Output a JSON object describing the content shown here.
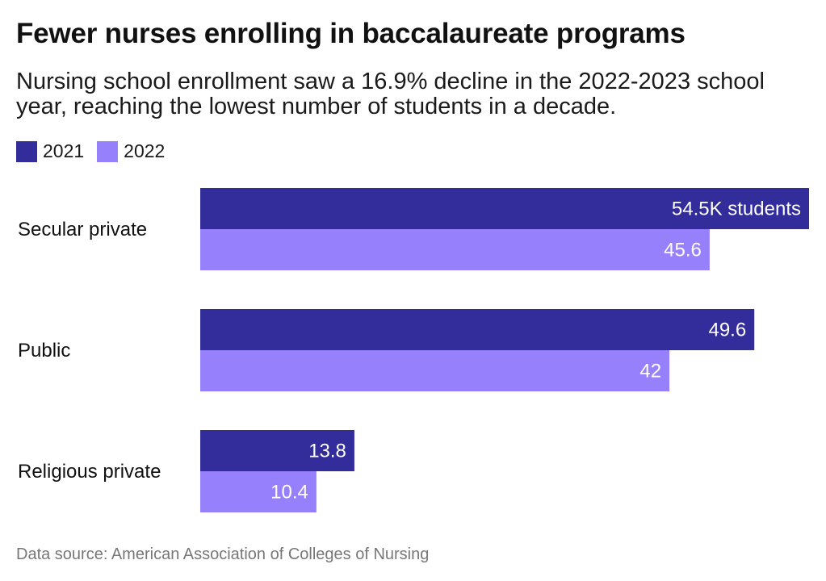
{
  "title": "Fewer nurses enrolling in baccalaureate programs",
  "subtitle": "Nursing school enrollment saw a 16.9% decline in the 2022-2023 school year, reaching the lowest number of students in a decade.",
  "source": "Data source: American Association of Colleges of Nursing",
  "colors": {
    "series_2021": "#332d9c",
    "series_2022": "#9780fb"
  },
  "chart_data": {
    "type": "bar",
    "orientation": "horizontal",
    "title": "Fewer nurses enrolling in baccalaureate programs",
    "xlabel": "",
    "ylabel": "",
    "units": "thousand students",
    "xlim": [
      0,
      54.5
    ],
    "grid": false,
    "legend_position": "top-left",
    "categories": [
      "Secular private",
      "Public",
      "Religious private"
    ],
    "series": [
      {
        "name": "2021",
        "color": "#332d9c",
        "values": [
          54.5,
          49.6,
          13.8
        ],
        "labels": [
          "54.5K students",
          "49.6",
          "13.8"
        ]
      },
      {
        "name": "2022",
        "color": "#9780fb",
        "values": [
          45.6,
          42,
          10.4
        ],
        "labels": [
          "45.6",
          "42",
          "10.4"
        ]
      }
    ]
  }
}
